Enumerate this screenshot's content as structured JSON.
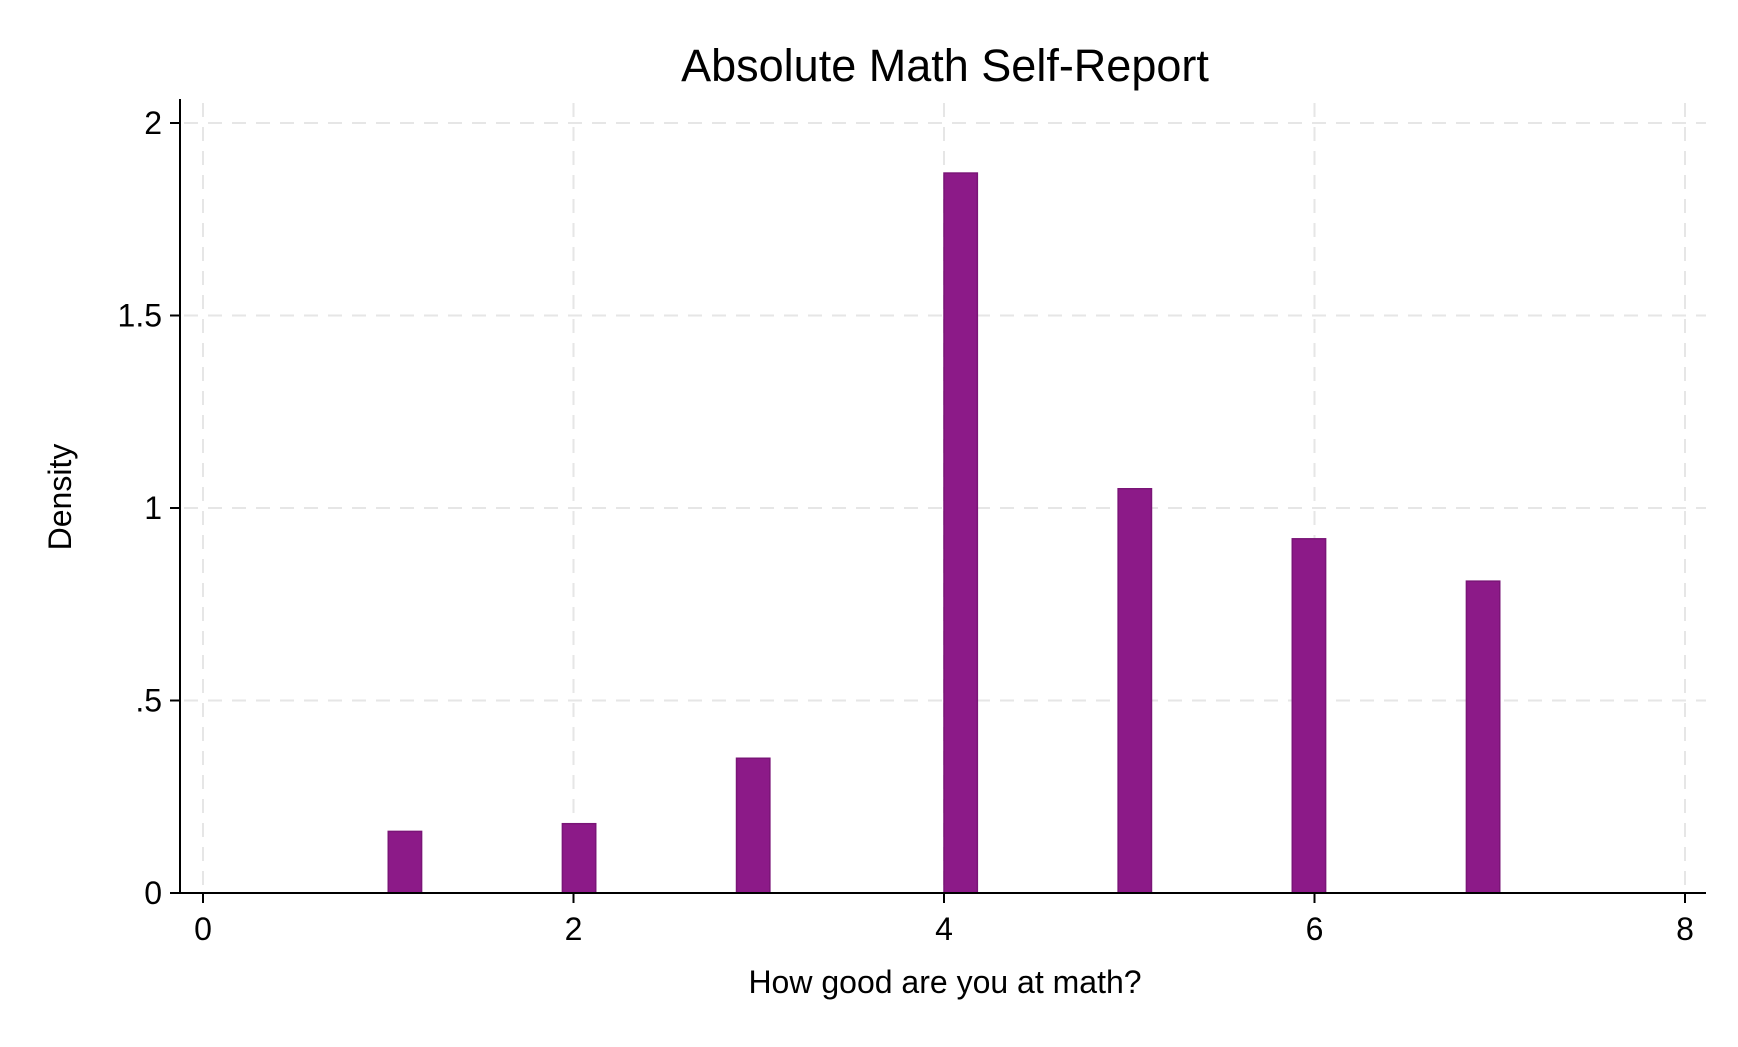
{
  "chart_data": {
    "type": "bar",
    "title": "Absolute Math Self-Report",
    "xlabel": "How good are you at math?",
    "ylabel": "Density",
    "xlim": [
      0,
      8
    ],
    "ylim": [
      0,
      2
    ],
    "x_ticks": [
      0,
      2,
      4,
      6,
      8
    ],
    "x_tick_labels": [
      "0",
      "2",
      "4",
      "6",
      "8"
    ],
    "y_ticks": [
      0,
      0.5,
      1,
      1.5,
      2
    ],
    "y_tick_labels": [
      "0",
      ".5",
      "1",
      "1.5",
      "2"
    ],
    "bar_width": 0.18,
    "bars": [
      {
        "x": 1.09,
        "value": 0.16
      },
      {
        "x": 2.03,
        "value": 0.18
      },
      {
        "x": 2.97,
        "value": 0.35
      },
      {
        "x": 4.09,
        "value": 1.87
      },
      {
        "x": 5.03,
        "value": 1.05
      },
      {
        "x": 5.97,
        "value": 0.92
      },
      {
        "x": 6.91,
        "value": 0.81
      }
    ],
    "grid": true,
    "bar_color": "#8c1a88",
    "bar_edge_color": "#7a1577",
    "grid_color": "#e6e6e6"
  }
}
